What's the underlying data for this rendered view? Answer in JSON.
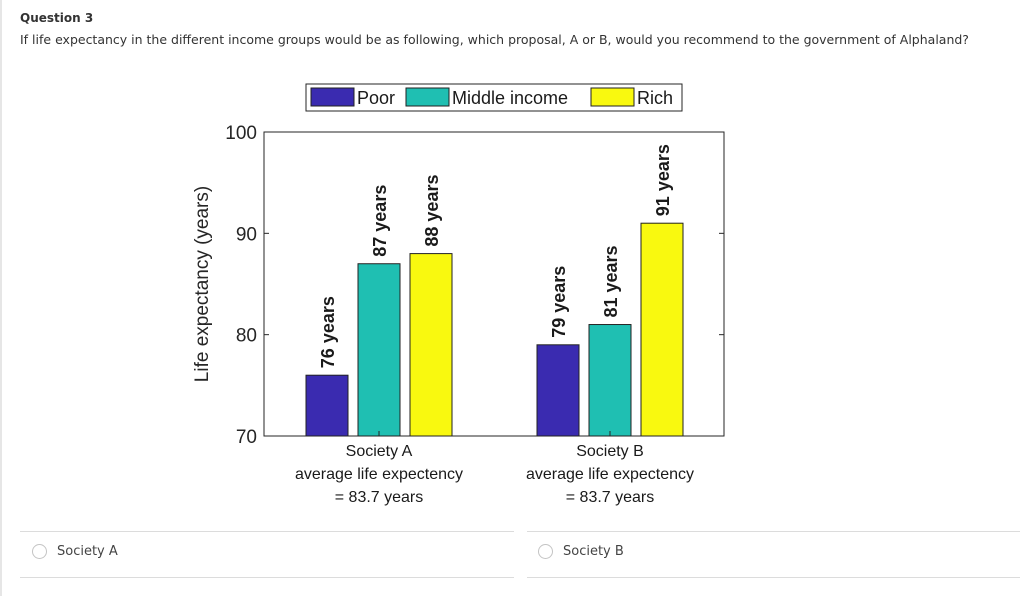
{
  "question": {
    "title": "Question 3",
    "text": "If life expectancy in the different income groups would be as following, which proposal, A or B, would you recommend to the government of Alphaland?"
  },
  "chart_data": {
    "type": "bar",
    "categories": [
      "Society A",
      "Society B"
    ],
    "category_sublabels": [
      [
        "average life expectency",
        "= 83.7 years"
      ],
      [
        "average life expectency",
        "= 83.7 years"
      ]
    ],
    "series": [
      {
        "name": "Poor",
        "color": "#3a2bb0",
        "values": [
          76,
          79
        ],
        "labels": [
          "76 years",
          "79 years"
        ]
      },
      {
        "name": "Middle income",
        "color": "#1fbfb2",
        "values": [
          87,
          81
        ],
        "labels": [
          "87 years",
          "81 years"
        ]
      },
      {
        "name": "Rich",
        "color": "#f9f90f",
        "values": [
          88,
          91
        ],
        "labels": [
          "88 years",
          "91 years"
        ]
      }
    ],
    "ylabel": "Life expectancy (years)",
    "ylim": [
      70,
      100
    ],
    "yticks": [
      "70",
      "80",
      "90",
      "100"
    ],
    "legend_position": "top",
    "grid": false
  },
  "options": [
    {
      "label": "Society A"
    },
    {
      "label": "Society B"
    }
  ]
}
